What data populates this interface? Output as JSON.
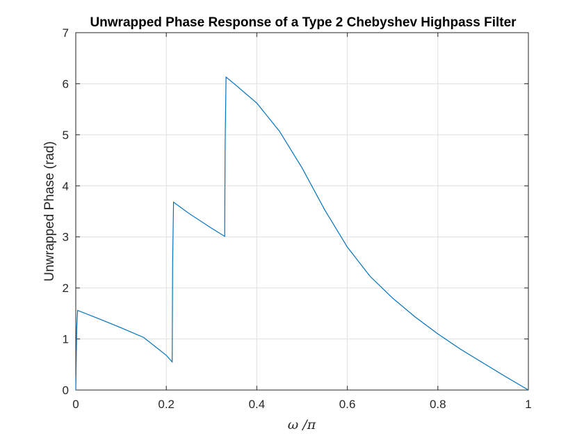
{
  "chart_data": {
    "type": "line",
    "title": "Unwrapped Phase Response of a Type 2 Chebyshev Highpass Filter",
    "xlabel": "ω /π",
    "ylabel": "Unwrapped Phase (rad)",
    "xlim": [
      0,
      1
    ],
    "ylim": [
      0,
      7
    ],
    "xticks": [
      0,
      0.2,
      0.4,
      0.6,
      0.8,
      1
    ],
    "xtick_labels": [
      "0",
      "0.2",
      "0.4",
      "0.6",
      "0.8",
      "1"
    ],
    "yticks": [
      0,
      1,
      2,
      3,
      4,
      5,
      6,
      7
    ],
    "ytick_labels": [
      "0",
      "1",
      "2",
      "3",
      "4",
      "5",
      "6",
      "7"
    ],
    "grid": true,
    "line_color": "#0072BD",
    "series": [
      {
        "x": [
          0,
          0.002,
          0.004,
          0.05,
          0.1,
          0.15,
          0.2,
          0.213,
          0.214,
          0.216,
          0.25,
          0.3,
          0.329,
          0.33,
          0.332,
          0.35,
          0.4,
          0.45,
          0.5,
          0.55,
          0.6,
          0.65,
          0.7,
          0.75,
          0.8,
          0.85,
          0.9,
          0.95,
          1.0
        ],
        "y": [
          0,
          1.2,
          1.56,
          1.4,
          1.22,
          1.03,
          0.68,
          0.55,
          2.5,
          3.68,
          3.46,
          3.17,
          3.01,
          4.8,
          6.13,
          6.0,
          5.62,
          5.07,
          4.35,
          3.53,
          2.8,
          2.23,
          1.8,
          1.43,
          1.1,
          0.8,
          0.53,
          0.26,
          0.0
        ]
      }
    ]
  }
}
